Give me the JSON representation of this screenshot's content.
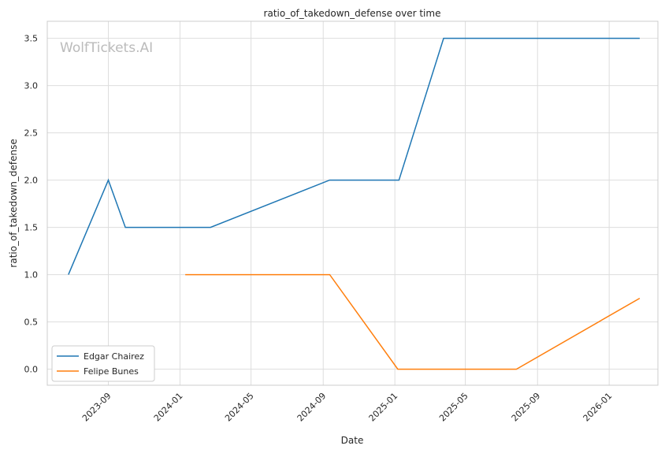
{
  "chart_data": {
    "type": "line",
    "title": "ratio_of_takedown_defense over time",
    "xlabel": "Date",
    "ylabel": "ratio_of_takedown_defense",
    "watermark": "WolfTickets.AI",
    "xlim": [
      "2023-05-20",
      "2026-03-25"
    ],
    "ylim": [
      -0.17,
      3.68
    ],
    "x_ticks": [
      "2023-09",
      "2024-01",
      "2024-05",
      "2024-09",
      "2025-01",
      "2025-05",
      "2025-09",
      "2026-01"
    ],
    "y_ticks": [
      "0.0",
      "0.5",
      "1.0",
      "1.5",
      "2.0",
      "2.5",
      "3.0",
      "3.5"
    ],
    "grid": true,
    "legend_position": "lower-left",
    "series": [
      {
        "name": "Edgar Chairez",
        "color": "#1f77b4",
        "x": [
          "2023-06-25",
          "2023-09-01",
          "2023-09-30",
          "2024-02-22",
          "2024-09-12",
          "2025-01-08",
          "2025-03-25",
          "2026-02-22"
        ],
        "y": [
          1.0,
          2.0,
          1.5,
          1.5,
          2.0,
          2.0,
          3.5,
          3.5
        ]
      },
      {
        "name": "Felipe Bunes",
        "color": "#ff7f0e",
        "x": [
          "2024-01-10",
          "2024-09-12",
          "2025-01-06",
          "2025-07-27",
          "2026-02-22"
        ],
        "y": [
          1.0,
          1.0,
          0.0,
          0.0,
          0.75
        ]
      }
    ]
  }
}
